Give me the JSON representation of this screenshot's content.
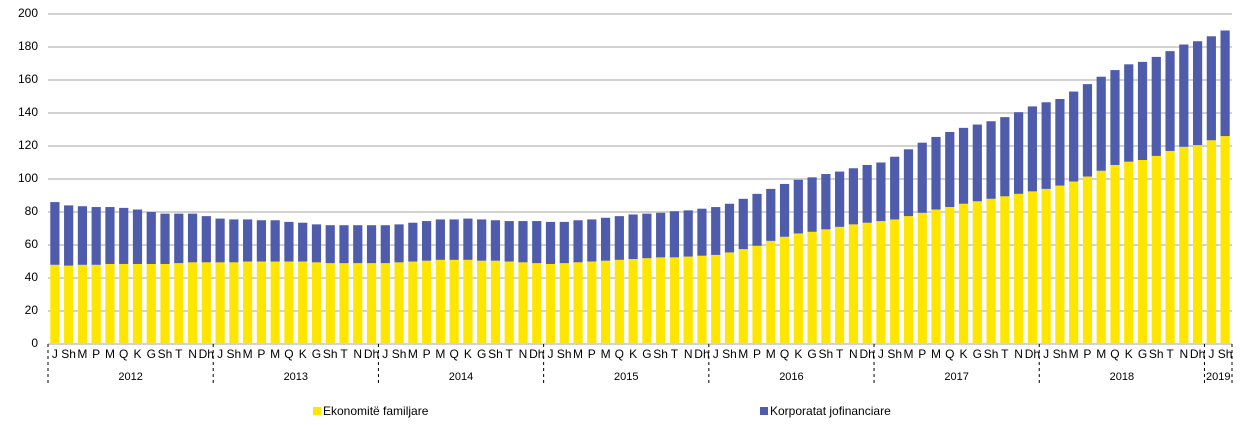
{
  "chart_data": {
    "type": "stacked_bar",
    "categories": [
      "J",
      "Sh",
      "M",
      "P",
      "M",
      "Q",
      "K",
      "G",
      "Sh",
      "T",
      "N",
      "Dh",
      "J",
      "Sh",
      "M",
      "P",
      "M",
      "Q",
      "K",
      "G",
      "Sh",
      "T",
      "N",
      "Dh",
      "J",
      "Sh",
      "M",
      "P",
      "M",
      "Q",
      "K",
      "G",
      "Sh",
      "T",
      "N",
      "Dh",
      "J",
      "Sh",
      "M",
      "P",
      "M",
      "Q",
      "K",
      "G",
      "Sh",
      "T",
      "N",
      "Dh",
      "J",
      "Sh",
      "M",
      "P",
      "M",
      "Q",
      "K",
      "G",
      "Sh",
      "T",
      "N",
      "Dh",
      "J",
      "Sh",
      "M",
      "P",
      "M",
      "Q",
      "K",
      "G",
      "Sh",
      "T",
      "N",
      "Dh",
      "J",
      "Sh",
      "M",
      "P",
      "M",
      "Q",
      "K",
      "G",
      "Sh",
      "T",
      "N",
      "Dh",
      "J",
      "Sh"
    ],
    "x_groups": [
      {
        "label": "2012",
        "categories": 12
      },
      {
        "label": "2013",
        "categories": 12
      },
      {
        "label": "2014",
        "categories": 12
      },
      {
        "label": "2015",
        "categories": 12
      },
      {
        "label": "2016",
        "categories": 12
      },
      {
        "label": "2017",
        "categories": 12
      },
      {
        "label": "2018",
        "categories": 12
      },
      {
        "label": "2019",
        "categories": 2
      }
    ],
    "series": [
      {
        "name": "Ekonomitë familjare",
        "color": "#ffe600",
        "values": [
          48,
          47.5,
          48,
          48,
          48.5,
          48.5,
          48.5,
          48.5,
          48.5,
          49,
          49.5,
          49.5,
          49.5,
          49.5,
          50,
          50,
          50,
          50,
          50,
          49.5,
          49,
          49,
          49,
          49,
          49,
          49.5,
          50,
          50.5,
          51,
          51,
          51,
          50.5,
          50.5,
          50,
          49.5,
          49,
          48.5,
          49,
          49.5,
          50,
          50.5,
          51,
          51.5,
          52,
          52.5,
          52.5,
          53,
          53.5,
          54,
          55.5,
          57.5,
          59.5,
          62.5,
          65,
          67,
          68,
          69.5,
          71,
          72.5,
          73.5,
          74.5,
          75.5,
          77.5,
          79.5,
          81.5,
          83,
          85,
          86.5,
          88,
          89.5,
          91,
          92.5,
          94,
          96,
          98.5,
          101.5,
          105,
          108.5,
          110.5,
          111.5,
          114,
          117,
          119.5,
          120.5,
          123.5,
          126
        ]
      },
      {
        "name": "Korporatat jofinanciare",
        "color": "#4f5bab",
        "values": [
          38,
          36.5,
          35.5,
          35,
          34.5,
          34,
          33,
          31.5,
          30.5,
          30,
          29.5,
          28,
          26.5,
          26,
          25.5,
          25,
          25,
          24,
          23.5,
          23,
          23,
          23,
          23,
          23,
          23,
          23,
          23.5,
          24,
          24.5,
          24.5,
          25,
          25,
          24.5,
          24.5,
          25,
          25.5,
          25.5,
          25,
          25.5,
          25.5,
          26,
          26.5,
          27,
          27,
          27,
          28,
          28,
          28.5,
          29,
          29.5,
          30.5,
          31.5,
          31.5,
          32,
          32.5,
          33,
          33.5,
          33.5,
          34,
          35,
          35.5,
          38,
          40.5,
          42.5,
          44,
          45.5,
          46,
          46.5,
          47,
          48,
          49.5,
          51.5,
          52.5,
          52.5,
          54.5,
          56,
          57,
          57.5,
          59,
          59.5,
          60,
          60.5,
          62,
          63,
          63,
          64
        ]
      }
    ],
    "ylim": [
      0,
      200
    ],
    "yticks": [
      0,
      20,
      40,
      60,
      80,
      100,
      120,
      140,
      160,
      180,
      200
    ],
    "grid": true,
    "legend": "bottom"
  }
}
